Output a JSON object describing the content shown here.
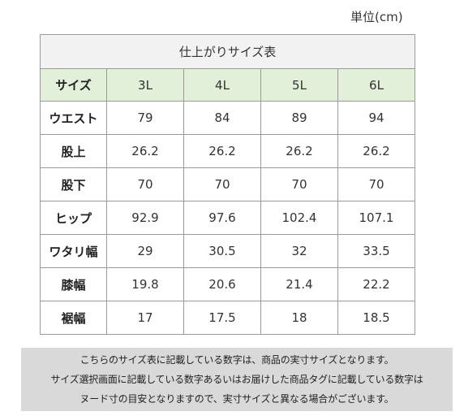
{
  "unit": "単位(cm)",
  "table": {
    "title": "仕上がりサイズ表",
    "headers": [
      "サイズ",
      "3L",
      "4L",
      "5L",
      "6L"
    ],
    "rows": [
      {
        "label": "ウエスト",
        "values": [
          "79",
          "84",
          "89",
          "94"
        ]
      },
      {
        "label": "股上",
        "values": [
          "26.2",
          "26.2",
          "26.2",
          "26.2"
        ]
      },
      {
        "label": "股下",
        "values": [
          "70",
          "70",
          "70",
          "70"
        ]
      },
      {
        "label": "ヒップ",
        "values": [
          "92.9",
          "97.6",
          "102.4",
          "107.1"
        ]
      },
      {
        "label": "ワタリ幅",
        "values": [
          "29",
          "30.5",
          "32",
          "33.5"
        ]
      },
      {
        "label": "膝幅",
        "values": [
          "19.8",
          "20.6",
          "21.4",
          "22.2"
        ]
      },
      {
        "label": "裾幅",
        "values": [
          "17",
          "17.5",
          "18",
          "18.5"
        ]
      }
    ]
  },
  "note": {
    "lines": [
      "こちらのサイズ表に記載している数字は、商品の実寸サイズとなります。",
      "サイズ選択画面に記載している数字あるいはお届けした商品タグに記載している数字は",
      "ヌード寸の目安となりますので、実寸サイズと異なる場合がございます。"
    ]
  }
}
